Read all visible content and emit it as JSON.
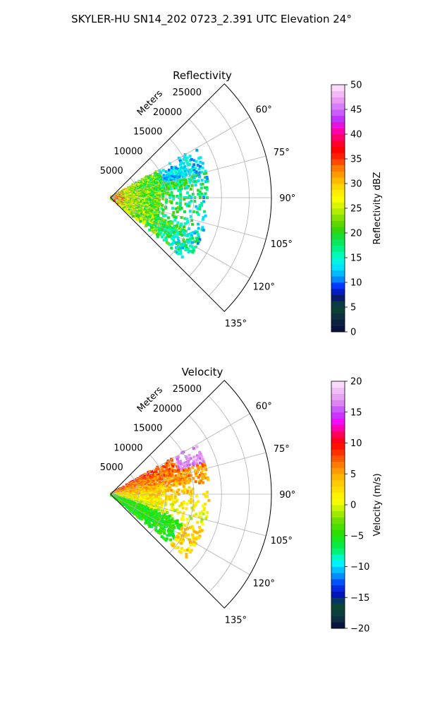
{
  "figure": {
    "suptitle": "SKYLER-HU  SN14_202  0723_2.391 UTC Elevation 24°"
  },
  "chart_data": [
    {
      "type": "polar-sector-heatmap",
      "title": "Reflectivity",
      "range_label": "Meters",
      "theta_range_deg": [
        45,
        135
      ],
      "r_max": 29000,
      "r_ticks": [
        5000,
        10000,
        15000,
        20000,
        25000
      ],
      "r_tick_labels": [
        "5000",
        "10000",
        "15000",
        "20000",
        "25000"
      ],
      "theta_ticks": [
        60,
        75,
        90,
        105,
        120,
        135
      ],
      "theta_tick_labels": [
        "60°",
        "75°",
        "90°",
        "105°",
        "120°",
        "135°"
      ],
      "grid": true,
      "colorbar": {
        "label": "Reflectivity dBZ",
        "vmin": 0,
        "vmax": 50,
        "ticks": [
          0,
          5,
          10,
          15,
          20,
          25,
          30,
          35,
          40,
          45,
          50
        ],
        "tick_labels": [
          "0",
          "5",
          "10",
          "15",
          "20",
          "25",
          "30",
          "35",
          "40",
          "45",
          "50"
        ],
        "colormap": "reflectivity"
      },
      "data_extent": {
        "azimuth_span_deg": [
          60,
          130
        ],
        "max_range_m": 18000,
        "typical_values": [
          15,
          20,
          25,
          30
        ]
      }
    },
    {
      "type": "polar-sector-heatmap",
      "title": "Velocity",
      "range_label": "Meters",
      "theta_range_deg": [
        45,
        135
      ],
      "r_max": 29000,
      "r_ticks": [
        5000,
        10000,
        15000,
        20000,
        25000
      ],
      "r_tick_labels": [
        "5000",
        "10000",
        "15000",
        "20000",
        "25000"
      ],
      "theta_ticks": [
        60,
        75,
        90,
        105,
        120,
        135
      ],
      "theta_tick_labels": [
        "60°",
        "75°",
        "90°",
        "105°",
        "120°",
        "135°"
      ],
      "grid": true,
      "colorbar": {
        "label": "Velocity (m/s)",
        "vmin": -20,
        "vmax": 20,
        "ticks": [
          -20,
          -15,
          -10,
          -5,
          0,
          5,
          10,
          15,
          20
        ],
        "tick_labels": [
          "−20",
          "−15",
          "−10",
          "−5",
          "0",
          "5",
          "10",
          "15",
          "20"
        ],
        "colormap": "velocity"
      },
      "data_extent": {
        "azimuth_span_deg": [
          60,
          130
        ],
        "max_range_m": 18000,
        "typical_values": [
          -6,
          -2,
          2,
          8,
          16
        ]
      }
    }
  ]
}
